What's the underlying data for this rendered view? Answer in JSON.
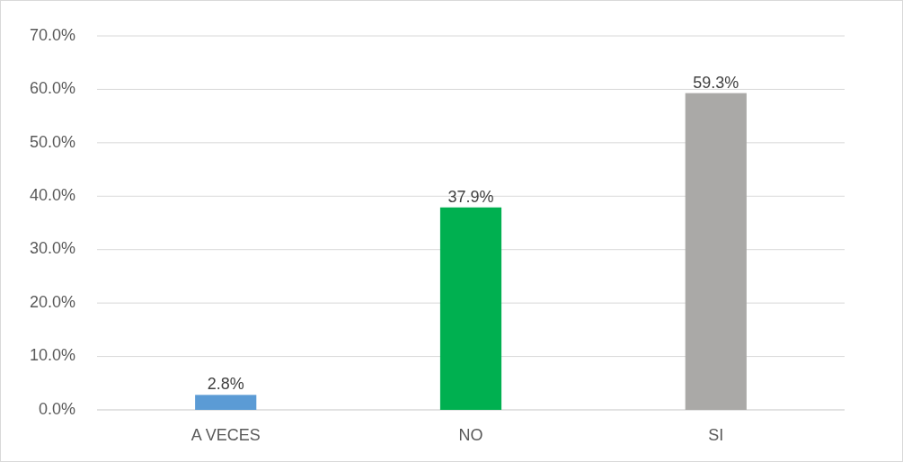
{
  "chart_data": {
    "type": "bar",
    "categories": [
      "A VECES",
      "NO",
      "SI"
    ],
    "values": [
      2.8,
      37.9,
      59.3
    ],
    "colors": [
      "#5b9bd5",
      "#00b050",
      "#aaa9a7"
    ],
    "value_labels": [
      "2.8%",
      "37.9%",
      "59.3%"
    ],
    "ylim": [
      0,
      70
    ],
    "yticks": [
      {
        "value": 0,
        "label": "0.0%"
      },
      {
        "value": 10,
        "label": "10.0%"
      },
      {
        "value": 20,
        "label": "20.0%"
      },
      {
        "value": 30,
        "label": "30.0%"
      },
      {
        "value": 40,
        "label": "40.0%"
      },
      {
        "value": 50,
        "label": "50.0%"
      },
      {
        "value": 60,
        "label": "60.0%"
      },
      {
        "value": 70,
        "label": "70.0%"
      }
    ],
    "grid": "y"
  }
}
